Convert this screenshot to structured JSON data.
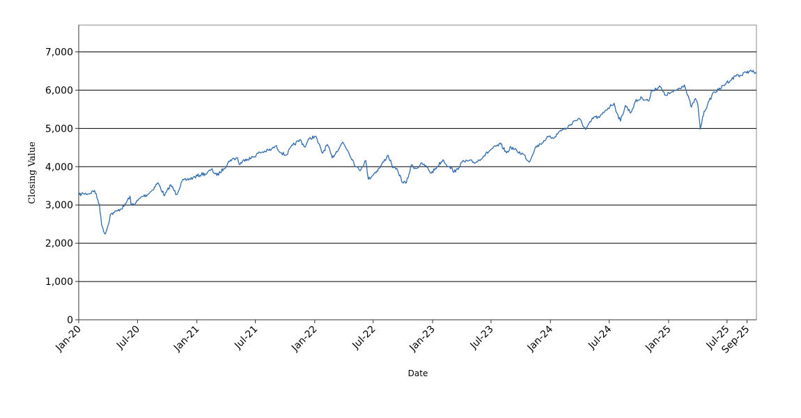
{
  "chart_data": {
    "type": "line",
    "title": "",
    "xlabel": "Date",
    "ylabel": "Closing Value",
    "ylim": [
      0,
      7700
    ],
    "xlim": [
      "2020-01-01",
      "2025-09-30"
    ],
    "grid": {
      "horizontal": true,
      "vertical": false
    },
    "legend": "none",
    "y_ticks": [
      0,
      1000,
      2000,
      3000,
      4000,
      5000,
      6000,
      7000
    ],
    "y_tick_labels": [
      "0",
      "1,000",
      "2,000",
      "3,000",
      "4,000",
      "5,000",
      "6,000",
      "7,000"
    ],
    "x_ticks": [
      "2020-01-01",
      "2020-07-01",
      "2021-01-01",
      "2021-07-01",
      "2022-01-01",
      "2022-07-01",
      "2023-01-01",
      "2023-07-01",
      "2024-01-01",
      "2024-07-01",
      "2025-01-01",
      "2025-07-01",
      "2025-09-01"
    ],
    "x_tick_labels": [
      "Jan-20",
      "Jul-20",
      "Jan-21",
      "Jul-21",
      "Jan-22",
      "Jul-22",
      "Jan-23",
      "Jul-23",
      "Jan-24",
      "Jul-24",
      "Jan-25",
      "Jul-25",
      "Sep-25"
    ],
    "series": [
      {
        "color": "#2E6AAF",
        "x": [
          "2020-01-02",
          "2020-01-15",
          "2020-02-01",
          "2020-02-19",
          "2020-03-05",
          "2020-03-12",
          "2020-03-16",
          "2020-03-23",
          "2020-04-01",
          "2020-04-08",
          "2020-04-20",
          "2020-05-01",
          "2020-05-20",
          "2020-06-08",
          "2020-06-11",
          "2020-06-25",
          "2020-07-15",
          "2020-08-01",
          "2020-08-15",
          "2020-09-02",
          "2020-09-23",
          "2020-10-12",
          "2020-10-30",
          "2020-11-16",
          "2020-12-01",
          "2020-12-20",
          "2021-01-15",
          "2021-02-01",
          "2021-02-15",
          "2021-03-04",
          "2021-03-25",
          "2021-04-15",
          "2021-05-07",
          "2021-05-12",
          "2021-06-01",
          "2021-06-18",
          "2021-07-15",
          "2021-08-01",
          "2021-08-20",
          "2021-09-02",
          "2021-09-20",
          "2021-10-04",
          "2021-10-25",
          "2021-11-18",
          "2021-12-01",
          "2021-12-15",
          "2022-01-03",
          "2022-01-25",
          "2022-02-09",
          "2022-02-24",
          "2022-03-29",
          "2022-04-15",
          "2022-05-09",
          "2022-05-20",
          "2022-06-08",
          "2022-06-16",
          "2022-07-05",
          "2022-07-20",
          "2022-08-16",
          "2022-09-01",
          "2022-09-15",
          "2022-09-30",
          "2022-10-12",
          "2022-10-28",
          "2022-11-10",
          "2022-11-30",
          "2022-12-14",
          "2022-12-28",
          "2023-01-15",
          "2023-02-02",
          "2023-02-20",
          "2023-03-13",
          "2023-04-01",
          "2023-04-20",
          "2023-05-15",
          "2023-06-10",
          "2023-07-01",
          "2023-07-31",
          "2023-08-18",
          "2023-09-01",
          "2023-09-20",
          "2023-10-10",
          "2023-10-27",
          "2023-11-15",
          "2023-12-01",
          "2023-12-20",
          "2024-01-15",
          "2024-02-01",
          "2024-02-20",
          "2024-03-15",
          "2024-04-01",
          "2024-04-19",
          "2024-05-15",
          "2024-06-01",
          "2024-06-20",
          "2024-07-16",
          "2024-07-25",
          "2024-08-05",
          "2024-08-20",
          "2024-09-06",
          "2024-09-20",
          "2024-10-10",
          "2024-11-01",
          "2024-11-11",
          "2024-12-06",
          "2024-12-20",
          "2025-01-15",
          "2025-02-19",
          "2025-03-01",
          "2025-03-13",
          "2025-03-25",
          "2025-04-02",
          "2025-04-08",
          "2025-04-09",
          "2025-04-21",
          "2025-05-01",
          "2025-05-20",
          "2025-06-05",
          "2025-06-30",
          "2025-07-15",
          "2025-07-31",
          "2025-08-15",
          "2025-08-28",
          "2025-09-10",
          "2025-09-30"
        ],
        "y": [
          3260,
          3300,
          3290,
          3380,
          3020,
          2480,
          2390,
          2237,
          2470,
          2750,
          2800,
          2850,
          2960,
          3230,
          3000,
          3050,
          3220,
          3270,
          3380,
          3580,
          3240,
          3530,
          3270,
          3620,
          3660,
          3710,
          3800,
          3820,
          3930,
          3770,
          3950,
          4180,
          4230,
          4060,
          4200,
          4220,
          4370,
          4400,
          4450,
          4540,
          4360,
          4300,
          4560,
          4700,
          4510,
          4730,
          4800,
          4350,
          4580,
          4230,
          4640,
          4400,
          4000,
          3900,
          4160,
          3670,
          3830,
          3960,
          4300,
          3970,
          3900,
          3590,
          3580,
          4050,
          3950,
          4080,
          3990,
          3830,
          4000,
          4180,
          4000,
          3860,
          4110,
          4150,
          4110,
          4290,
          4450,
          4590,
          4360,
          4510,
          4400,
          4320,
          4120,
          4500,
          4590,
          4750,
          4780,
          4950,
          5000,
          5200,
          5240,
          4970,
          5300,
          5280,
          5480,
          5660,
          5400,
          5190,
          5600,
          5410,
          5700,
          5800,
          5720,
          6000,
          6090,
          5870,
          5950,
          6140,
          5860,
          5560,
          5780,
          5600,
          5100,
          4983,
          5450,
          5600,
          5950,
          6000,
          6200,
          6280,
          6400,
          6380,
          6470,
          6500,
          6450
        ]
      }
    ]
  }
}
